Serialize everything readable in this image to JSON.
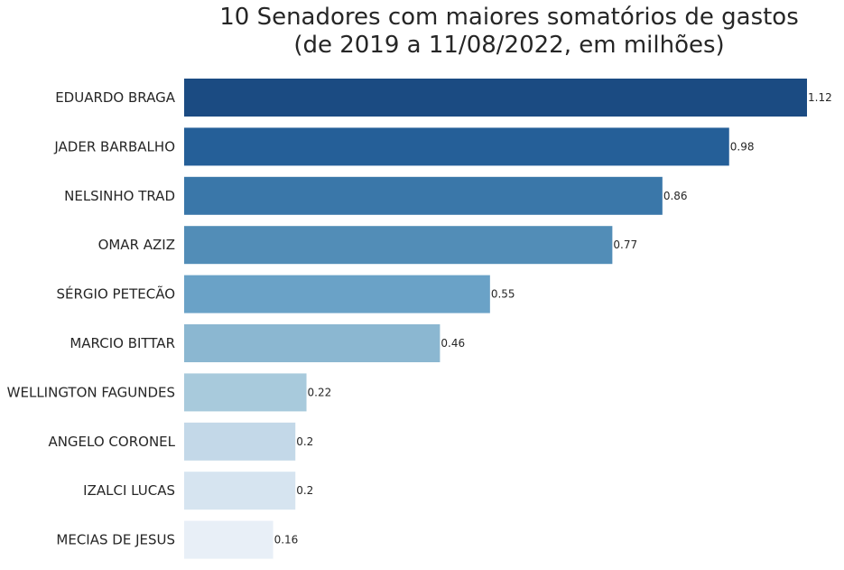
{
  "chart_data": {
    "type": "bar",
    "orientation": "horizontal",
    "title_line1": "10 Senadores com maiores somatórios de gastos",
    "title_line2": "(de 2019 a 11/08/2022, em milhões)",
    "xlabel": "",
    "ylabel": "",
    "grid": false,
    "categories": [
      "EDUARDO BRAGA",
      "JADER BARBALHO",
      "NELSINHO TRAD",
      "OMAR AZIZ",
      "SÉRGIO PETECÃO",
      "MARCIO BITTAR",
      "WELLINGTON FAGUNDES",
      "ANGELO CORONEL",
      "IZALCI LUCAS",
      "MECIAS DE JESUS"
    ],
    "values": [
      1.12,
      0.98,
      0.86,
      0.77,
      0.55,
      0.46,
      0.22,
      0.2,
      0.2,
      0.16
    ],
    "value_labels": [
      "1.12",
      "0.98",
      "0.86",
      "0.77",
      "0.55",
      "0.46",
      "0.22",
      "0.2",
      "0.2",
      "0.16"
    ],
    "xlim": [
      0,
      1.12
    ],
    "colors": [
      "#1b4b82",
      "#255f98",
      "#3a77a9",
      "#528db7",
      "#6aa2c7",
      "#8bb7d1",
      "#a8cadc",
      "#c3d8e8",
      "#d6e4f0",
      "#e8eff7"
    ]
  }
}
